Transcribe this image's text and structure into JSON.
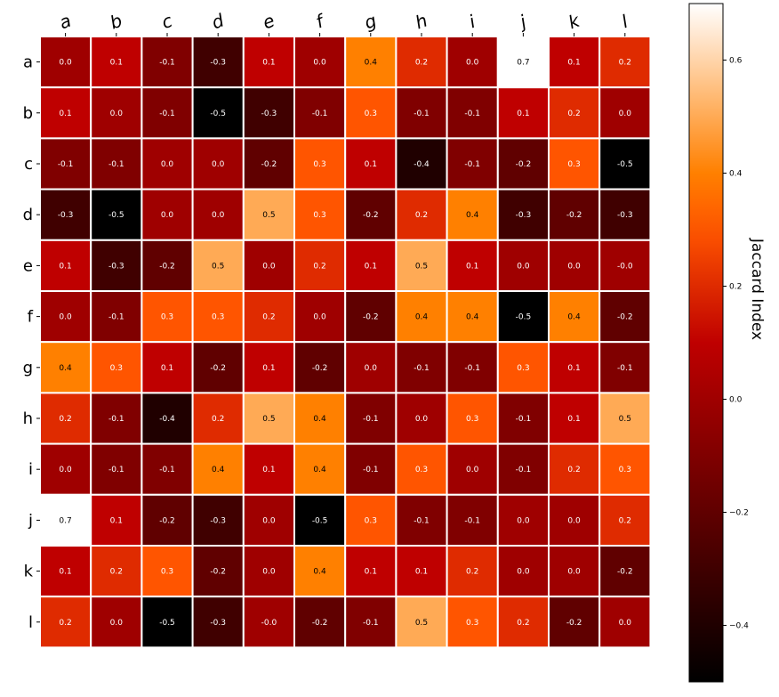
{
  "chart_data": {
    "type": "heatmap",
    "row_labels": [
      "a",
      "b",
      "c",
      "d",
      "e",
      "f",
      "g",
      "h",
      "i",
      "j",
      "k",
      "l"
    ],
    "col_labels": [
      "a",
      "b",
      "c",
      "d",
      "e",
      "f",
      "g",
      "h",
      "i",
      "j",
      "k",
      "l"
    ],
    "values": [
      [
        0.0,
        0.1,
        -0.1,
        -0.3,
        0.1,
        0.0,
        0.4,
        0.2,
        0.0,
        0.7,
        0.1,
        0.2
      ],
      [
        0.1,
        0.0,
        -0.1,
        -0.5,
        -0.3,
        -0.1,
        0.3,
        -0.1,
        -0.1,
        0.1,
        0.2,
        0.0
      ],
      [
        -0.1,
        -0.1,
        0.0,
        0.0,
        -0.2,
        0.3,
        0.1,
        -0.4,
        -0.1,
        -0.2,
        0.3,
        -0.5
      ],
      [
        -0.3,
        -0.5,
        0.0,
        0.0,
        0.5,
        0.3,
        -0.2,
        0.2,
        0.4,
        -0.3,
        -0.2,
        -0.3
      ],
      [
        0.1,
        -0.3,
        -0.2,
        0.5,
        0.0,
        0.2,
        0.1,
        0.5,
        0.1,
        0.0,
        0.0,
        -0.0
      ],
      [
        0.0,
        -0.1,
        0.3,
        0.3,
        0.2,
        0.0,
        -0.2,
        0.4,
        0.4,
        -0.5,
        0.4,
        -0.2
      ],
      [
        0.4,
        0.3,
        0.1,
        -0.2,
        0.1,
        -0.2,
        0.0,
        -0.1,
        -0.1,
        0.3,
        0.1,
        -0.1
      ],
      [
        0.2,
        -0.1,
        -0.4,
        0.2,
        0.5,
        0.4,
        -0.1,
        0.0,
        0.3,
        -0.1,
        0.1,
        0.5
      ],
      [
        0.0,
        -0.1,
        -0.1,
        0.4,
        0.1,
        0.4,
        -0.1,
        0.3,
        0.0,
        -0.1,
        0.2,
        0.3
      ],
      [
        0.7,
        0.1,
        -0.2,
        -0.3,
        0.0,
        -0.5,
        0.3,
        -0.1,
        -0.1,
        0.0,
        0.0,
        0.2
      ],
      [
        0.1,
        0.2,
        0.3,
        -0.2,
        0.0,
        0.4,
        0.1,
        0.1,
        0.2,
        0.0,
        0.0,
        -0.2
      ],
      [
        0.2,
        0.0,
        -0.5,
        -0.3,
        -0.0,
        -0.2,
        -0.1,
        0.5,
        0.3,
        0.2,
        -0.2,
        0.0
      ]
    ],
    "value_labels": [
      [
        "0.0",
        "0.1",
        "-0.1",
        "-0.3",
        "0.1",
        "0.0",
        "0.4",
        "0.2",
        "0.0",
        "0.7",
        "0.1",
        "0.2"
      ],
      [
        "0.1",
        "0.0",
        "-0.1",
        "-0.5",
        "-0.3",
        "-0.1",
        "0.3",
        "-0.1",
        "-0.1",
        "0.1",
        "0.2",
        "0.0"
      ],
      [
        "-0.1",
        "-0.1",
        "0.0",
        "0.0",
        "-0.2",
        "0.3",
        "0.1",
        "-0.4",
        "-0.1",
        "-0.2",
        "0.3",
        "-0.5"
      ],
      [
        "-0.3",
        "-0.5",
        "0.0",
        "0.0",
        "0.5",
        "0.3",
        "-0.2",
        "0.2",
        "0.4",
        "-0.3",
        "-0.2",
        "-0.3"
      ],
      [
        "0.1",
        "-0.3",
        "-0.2",
        "0.5",
        "0.0",
        "0.2",
        "0.1",
        "0.5",
        "0.1",
        "0.0",
        "0.0",
        "-0.0"
      ],
      [
        "0.0",
        "-0.1",
        "0.3",
        "0.3",
        "0.2",
        "0.0",
        "-0.2",
        "0.4",
        "0.4",
        "-0.5",
        "0.4",
        "-0.2"
      ],
      [
        "0.4",
        "0.3",
        "0.1",
        "-0.2",
        "0.1",
        "-0.2",
        "0.0",
        "-0.1",
        "-0.1",
        "0.3",
        "0.1",
        "-0.1"
      ],
      [
        "0.2",
        "-0.1",
        "-0.4",
        "0.2",
        "0.5",
        "0.4",
        "-0.1",
        "0.0",
        "0.3",
        "-0.1",
        "0.1",
        "0.5"
      ],
      [
        "0.0",
        "-0.1",
        "-0.1",
        "0.4",
        "0.1",
        "0.4",
        "-0.1",
        "0.3",
        "0.0",
        "-0.1",
        "0.2",
        "0.3"
      ],
      [
        "0.7",
        "0.1",
        "-0.2",
        "-0.3",
        "0.0",
        "-0.5",
        "0.3",
        "-0.1",
        "-0.1",
        "0.0",
        "0.0",
        "0.2"
      ],
      [
        "0.1",
        "0.2",
        "0.3",
        "-0.2",
        "0.0",
        "0.4",
        "0.1",
        "0.1",
        "0.2",
        "0.0",
        "0.0",
        "-0.2"
      ],
      [
        "0.2",
        "0.0",
        "-0.5",
        "-0.3",
        "-0.0",
        "-0.2",
        "-0.1",
        "0.5",
        "0.3",
        "0.2",
        "-0.2",
        "0.0"
      ]
    ],
    "colormap": "gist_heat",
    "vmin": -0.5,
    "vmax": 0.7,
    "colorbar": {
      "label": "Jaccard Index",
      "ticks": [
        -0.4,
        -0.2,
        0.0,
        0.2,
        0.4,
        0.6
      ],
      "tick_labels": [
        "−0.4",
        "−0.2",
        "0.0",
        "0.2",
        "0.4",
        "0.6"
      ],
      "position": "right"
    },
    "grid": false,
    "cell_border_color": "#ffffff"
  }
}
